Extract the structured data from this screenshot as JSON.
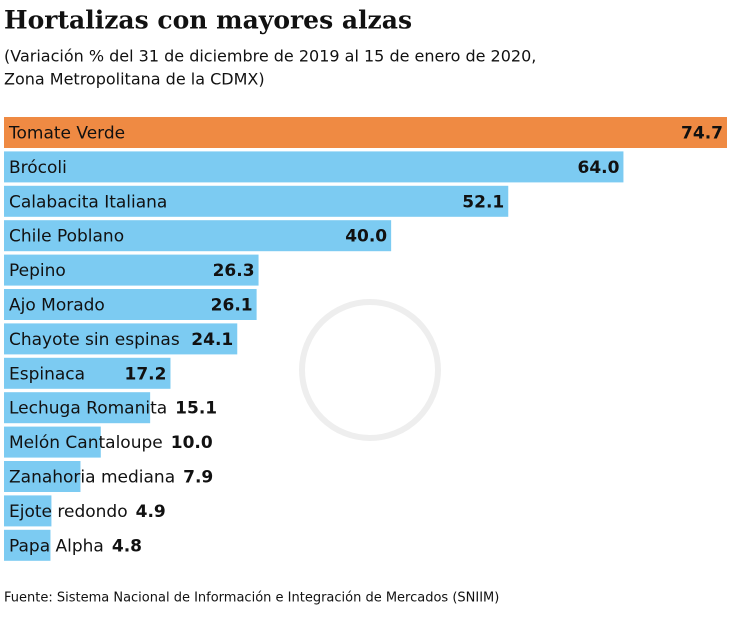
{
  "chart_data": {
    "type": "bar",
    "orientation": "horizontal",
    "title": "Hortalizas con mayores alzas",
    "subtitle": [
      "(Variación % del 31 de diciembre de 2019 al 15 de enero de 2020,",
      "Zona Metropolitana de la CDMX)"
    ],
    "categories": [
      "Tomate Verde",
      "Brócoli",
      "Calabacita Italiana",
      "Chile Poblano",
      "Pepino",
      "Ajo Morado",
      "Chayote sin espinas",
      "Espinaca",
      "Lechuga Romanita",
      "Melón Cantaloupe",
      "Zanahoria mediana",
      "Ejote redondo",
      "Papa Alpha"
    ],
    "values": [
      74.7,
      64.0,
      52.1,
      40.0,
      26.3,
      26.1,
      24.1,
      17.2,
      15.1,
      10.0,
      7.9,
      4.9,
      4.8
    ],
    "value_labels": [
      "74.7",
      "64.0",
      "52.1",
      "40.0",
      "26.3",
      "26.1",
      "24.1",
      "17.2",
      "15.1",
      "10.0",
      "7.9",
      "4.9",
      "4.8"
    ],
    "colors": [
      "#ef8a43",
      "#7ccbf2",
      "#7ccbf2",
      "#7ccbf2",
      "#7ccbf2",
      "#7ccbf2",
      "#7ccbf2",
      "#7ccbf2",
      "#7ccbf2",
      "#7ccbf2",
      "#7ccbf2",
      "#7ccbf2",
      "#7ccbf2"
    ],
    "source": "Fuente: Sistema Nacional de Información e Integración de Mercados (SNIIM)"
  }
}
